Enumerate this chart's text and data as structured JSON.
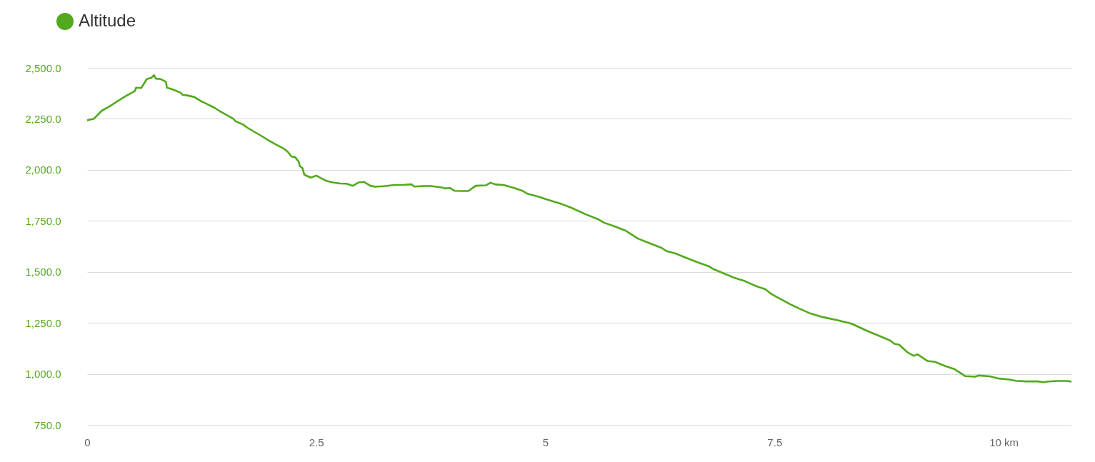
{
  "chart_data": {
    "type": "line",
    "x": [
      0,
      0.075,
      0.16,
      0.24,
      0.32,
      0.43,
      0.52,
      0.535,
      0.59,
      0.61,
      0.65,
      0.7,
      0.73,
      0.75,
      0.8,
      0.86,
      0.87,
      0.94,
      1.02,
      1.04,
      1.1,
      1.17,
      1.23,
      1.31,
      1.39,
      1.46,
      1.53,
      1.59,
      1.62,
      1.7,
      1.75,
      1.83,
      1.91,
      1.98,
      2.06,
      2.15,
      2.19,
      2.23,
      2.27,
      2.31,
      2.32,
      2.35,
      2.37,
      2.44,
      2.5,
      2.55,
      2.61,
      2.68,
      2.76,
      2.83,
      2.9,
      2.96,
      3.02,
      3.09,
      3.14,
      3.23,
      3.36,
      3.46,
      3.54,
      3.57,
      3.67,
      3.75,
      3.88,
      3.9,
      3.96,
      4.01,
      4.09,
      4.16,
      4.24,
      4.35,
      4.4,
      4.45,
      4.55,
      4.66,
      4.75,
      4.81,
      4.92,
      5.07,
      5.18,
      5.28,
      5.44,
      5.57,
      5.64,
      5.75,
      5.88,
      6.01,
      6.14,
      6.27,
      6.32,
      6.42,
      6.53,
      6.66,
      6.79,
      6.84,
      6.94,
      7.05,
      7.18,
      7.3,
      7.4,
      7.46,
      7.56,
      7.69,
      7.77,
      7.88,
      8.03,
      8.19,
      8.34,
      8.5,
      8.65,
      8.76,
      8.81,
      8.86,
      8.95,
      9.02,
      9.06,
      9.17,
      9.25,
      9.36,
      9.46,
      9.58,
      9.69,
      9.73,
      9.85,
      9.95,
      10.06,
      10.13,
      10.24,
      10.37,
      10.44,
      10.47,
      10.58,
      10.68,
      10.74
    ],
    "series": [
      {
        "name": "Altitude",
        "color": "#52a91c",
        "values": [
          2243,
          2251,
          2290,
          2310,
          2333,
          2364,
          2386,
          2403,
          2401,
          2415,
          2445,
          2451,
          2464,
          2447,
          2445,
          2431,
          2403,
          2393,
          2378,
          2368,
          2364,
          2357,
          2340,
          2322,
          2304,
          2284,
          2267,
          2252,
          2238,
          2222,
          2206,
          2185,
          2164,
          2144,
          2124,
          2103,
          2088,
          2065,
          2062,
          2039,
          2019,
          2008,
          1976,
          1962,
          1972,
          1960,
          1946,
          1938,
          1933,
          1932,
          1922,
          1938,
          1941,
          1922,
          1917,
          1920,
          1926,
          1927,
          1929,
          1918,
          1921,
          1921,
          1913,
          1909,
          1911,
          1897,
          1896,
          1896,
          1922,
          1924,
          1937,
          1929,
          1925,
          1911,
          1897,
          1882,
          1869,
          1847,
          1832,
          1815,
          1782,
          1759,
          1741,
          1724,
          1701,
          1663,
          1640,
          1617,
          1602,
          1590,
          1570,
          1547,
          1526,
          1512,
          1494,
          1473,
          1454,
          1430,
          1415,
          1393,
          1368,
          1337,
          1320,
          1298,
          1278,
          1263,
          1246,
          1213,
          1185,
          1164,
          1147,
          1143,
          1106,
          1088,
          1096,
          1063,
          1059,
          1039,
          1024,
          989,
          986,
          992,
          988,
          977,
          972,
          966,
          963,
          963,
          959,
          962,
          965,
          965,
          962
        ]
      }
    ],
    "xlim": [
      0,
      10.74
    ],
    "xticks": [
      0,
      2.5,
      5,
      7.5,
      {
        "value": 10,
        "label": "10 km"
      }
    ],
    "ylim": [
      750,
      2500
    ],
    "yticks": [
      {
        "value": 750,
        "label": "750.0"
      },
      {
        "value": 1000,
        "label": "1,000.0"
      },
      {
        "value": 1250,
        "label": "1,250.0"
      },
      {
        "value": 1500,
        "label": "1,500.0"
      },
      {
        "value": 1750,
        "label": "1,750.0"
      },
      {
        "value": 2000,
        "label": "2,000.0"
      },
      {
        "value": 2250,
        "label": "2,250.0"
      },
      {
        "value": 2500,
        "label": "2,500.0"
      }
    ],
    "grid": "y",
    "legend": "top left"
  }
}
